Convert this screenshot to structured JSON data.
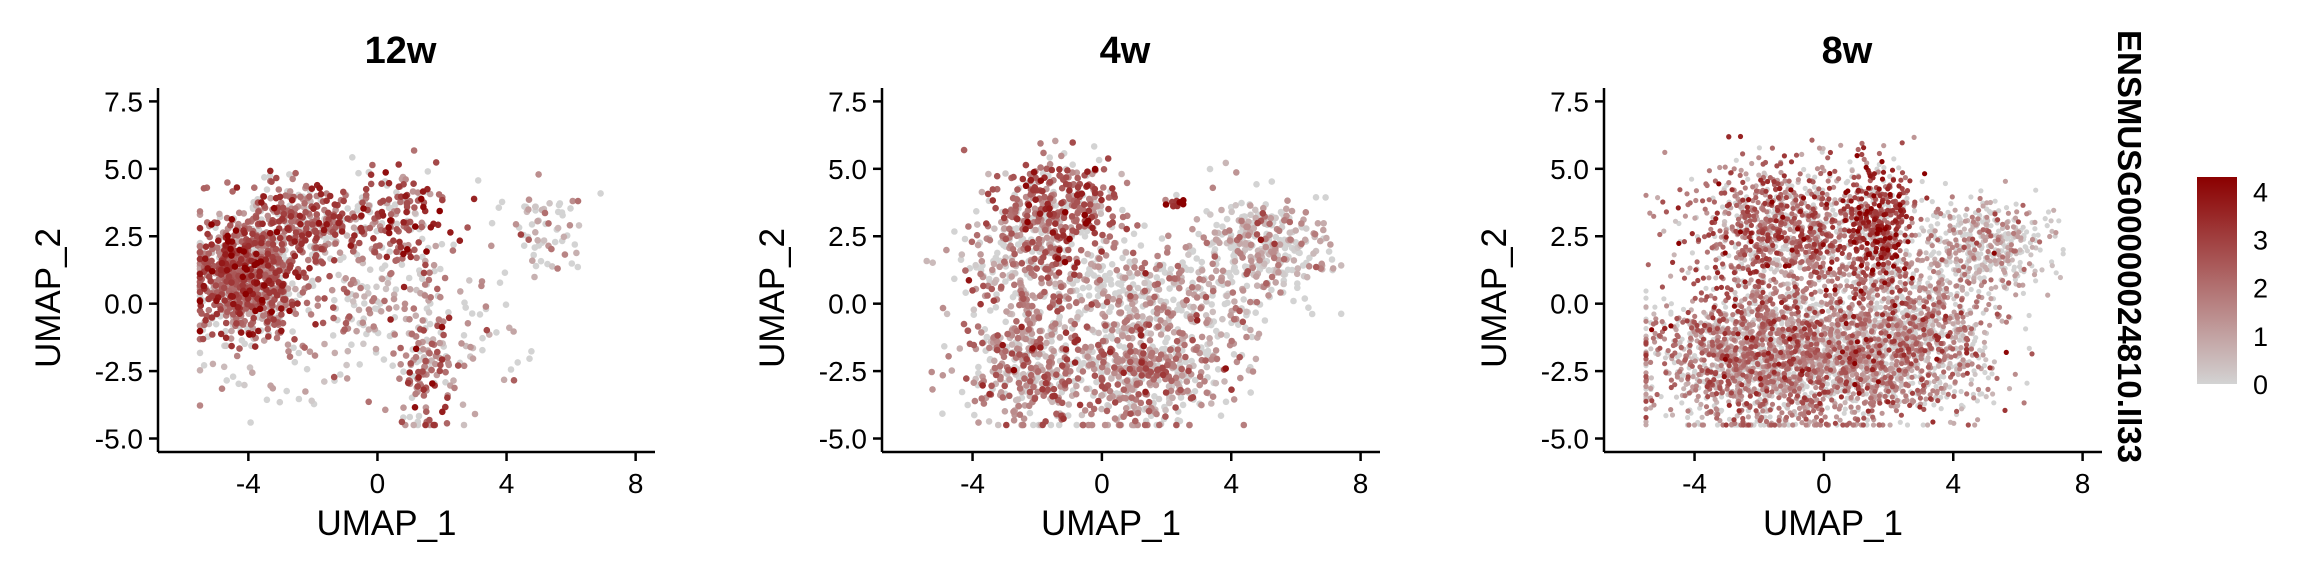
{
  "chart_data": [
    {
      "type": "scatter",
      "title": "12w",
      "xlabel": "UMAP_1",
      "ylabel": "UMAP_2",
      "xlim": [
        -6.8,
        8.6
      ],
      "ylim": [
        -5.5,
        7.7
      ],
      "xticks": [
        "-4",
        "0",
        "4",
        "8"
      ],
      "yticks": [
        "-5.0",
        "-2.5",
        "0.0",
        "2.5",
        "5.0",
        "7.5"
      ],
      "clusters": [
        {
          "cx": -4.0,
          "cy": 1.0,
          "sx": 0.85,
          "sy": 1.1,
          "n": 900,
          "mean": 2.3
        },
        {
          "cx": -2.3,
          "cy": 3.0,
          "sx": 0.9,
          "sy": 0.7,
          "n": 260,
          "mean": 2.4
        },
        {
          "cx": 0.5,
          "cy": 3.3,
          "sx": 0.9,
          "sy": 1.0,
          "n": 160,
          "mean": 2.6
        },
        {
          "cx": 1.5,
          "cy": -2.5,
          "sx": 0.6,
          "sy": 1.2,
          "n": 130,
          "mean": 2.0
        },
        {
          "cx": 0.0,
          "cy": 0.5,
          "sx": 1.6,
          "sy": 1.5,
          "n": 200,
          "mean": 1.2
        },
        {
          "cx": 5.0,
          "cy": 2.5,
          "sx": 0.8,
          "sy": 0.8,
          "n": 70,
          "mean": 0.5
        },
        {
          "cx": -3.5,
          "cy": -3.0,
          "sx": 1.2,
          "sy": 0.8,
          "n": 30,
          "mean": 0.3
        },
        {
          "cx": 3.5,
          "cy": -1.5,
          "sx": 1.0,
          "sy": 0.8,
          "n": 30,
          "mean": 0.8
        }
      ]
    },
    {
      "type": "scatter",
      "title": "4w",
      "xlabel": "UMAP_1",
      "ylabel": "UMAP_2",
      "xlim": [
        -6.8,
        8.6
      ],
      "ylim": [
        -5.5,
        7.7
      ],
      "xticks": [
        "-4",
        "0",
        "4",
        "8"
      ],
      "yticks": [
        "-5.0",
        "-2.5",
        "0.0",
        "2.5",
        "5.0",
        "7.5"
      ],
      "clusters": [
        {
          "cx": -1.3,
          "cy": 3.6,
          "sx": 0.9,
          "sy": 0.9,
          "n": 320,
          "mean": 2.3
        },
        {
          "cx": -2.3,
          "cy": 1.5,
          "sx": 1.0,
          "sy": 1.1,
          "n": 280,
          "mean": 1.2
        },
        {
          "cx": -2.0,
          "cy": -2.3,
          "sx": 1.1,
          "sy": 1.2,
          "n": 420,
          "mean": 1.5
        },
        {
          "cx": 1.5,
          "cy": -2.5,
          "sx": 1.2,
          "sy": 1.1,
          "n": 420,
          "mean": 1.3
        },
        {
          "cx": 1.0,
          "cy": 0.5,
          "sx": 1.2,
          "sy": 1.0,
          "n": 260,
          "mean": 0.8
        },
        {
          "cx": 5.0,
          "cy": 2.2,
          "sx": 1.0,
          "sy": 0.9,
          "n": 320,
          "mean": 0.6
        },
        {
          "cx": 2.2,
          "cy": 3.8,
          "sx": 0.15,
          "sy": 0.12,
          "n": 10,
          "mean": 3.6
        },
        {
          "cx": 3.5,
          "cy": -0.5,
          "sx": 0.9,
          "sy": 1.3,
          "n": 130,
          "mean": 0.7
        }
      ]
    },
    {
      "type": "scatter",
      "title": "8w",
      "xlabel": "UMAP_1",
      "ylabel": "UMAP_2",
      "xlim": [
        -6.8,
        8.6
      ],
      "ylim": [
        -5.5,
        7.7
      ],
      "xticks": [
        "-4",
        "0",
        "4",
        "8"
      ],
      "yticks": [
        "-5.0",
        "-2.5",
        "0.0",
        "2.5",
        "5.0",
        "7.5"
      ],
      "clusters": [
        {
          "cx": -1.0,
          "cy": 2.8,
          "sx": 1.6,
          "sy": 1.2,
          "n": 1100,
          "mean": 1.9
        },
        {
          "cx": -2.0,
          "cy": -2.0,
          "sx": 1.7,
          "sy": 1.3,
          "n": 1700,
          "mean": 1.5
        },
        {
          "cx": 1.8,
          "cy": -1.8,
          "sx": 1.6,
          "sy": 1.3,
          "n": 1300,
          "mean": 1.3
        },
        {
          "cx": 1.8,
          "cy": 2.8,
          "sx": 0.5,
          "sy": 1.2,
          "n": 380,
          "mean": 2.9
        },
        {
          "cx": 5.0,
          "cy": 2.2,
          "sx": 1.0,
          "sy": 0.9,
          "n": 420,
          "mean": 0.6
        },
        {
          "cx": 3.3,
          "cy": -0.3,
          "sx": 1.0,
          "sy": 1.3,
          "n": 320,
          "mean": 0.9
        }
      ]
    }
  ],
  "legend": {
    "title": "ENSMUSG00000024810.Il33",
    "ticks": [
      "4",
      "3",
      "2",
      "1",
      "0"
    ],
    "range": [
      0,
      4.3
    ],
    "color_low": "#d3d3d3",
    "color_high": "#8b0000"
  }
}
